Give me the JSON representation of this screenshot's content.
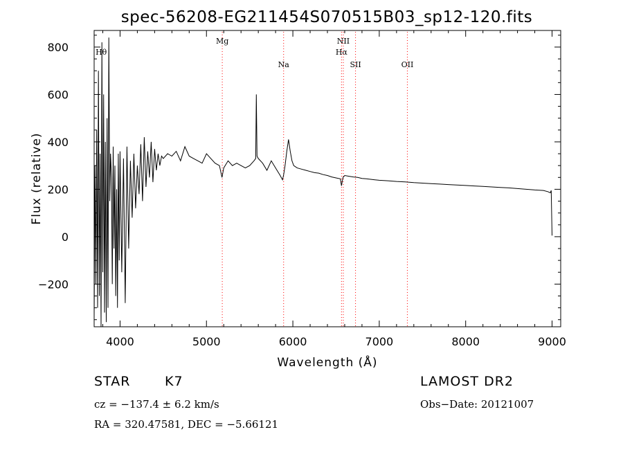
{
  "chart_data": {
    "type": "line",
    "title": "spec-56208-EG211454S070515B03_sp12-120.fits",
    "xlabel": "Wavelength (Å)",
    "ylabel": "Flux (relative)",
    "xlim": [
      3700,
      9100
    ],
    "ylim": [
      -380,
      870
    ],
    "xticks": [
      4000,
      5000,
      6000,
      7000,
      8000,
      9000
    ],
    "yticks": [
      -200,
      0,
      200,
      400,
      600,
      800
    ],
    "line_color": "#000000",
    "marker_color": "#ff0000",
    "series": [
      {
        "values_x": [
          3700,
          3710,
          3720,
          3730,
          3740,
          3750,
          3760,
          3770,
          3780,
          3790,
          3800,
          3810,
          3820,
          3830,
          3840,
          3850,
          3860,
          3870,
          3880,
          3890,
          3900,
          3910,
          3920,
          3930,
          3940,
          3950,
          3960,
          3970,
          3980,
          3990,
          4000,
          4020,
          4040,
          4060,
          4080,
          4100,
          4120,
          4140,
          4160,
          4180,
          4200,
          4220,
          4240,
          4260,
          4280,
          4300,
          4320,
          4340,
          4360,
          4380,
          4400,
          4420,
          4440,
          4460,
          4480,
          4500,
          4550,
          4600,
          4650,
          4700,
          4750,
          4800,
          4850,
          4900,
          4950,
          5000,
          5050,
          5100,
          5150,
          5180,
          5200,
          5250,
          5300,
          5350,
          5400,
          5450,
          5500,
          5550,
          5570,
          5577,
          5585,
          5600,
          5650,
          5700,
          5750,
          5800,
          5850,
          5880,
          5893,
          5910,
          5930,
          5950,
          5970,
          5990,
          6010,
          6050,
          6100,
          6150,
          6200,
          6250,
          6300,
          6350,
          6400,
          6450,
          6500,
          6550,
          6563,
          6580,
          6600,
          6650,
          6700,
          6750,
          6800,
          6850,
          6900,
          6950,
          7000,
          7100,
          7200,
          7300,
          7400,
          7500,
          7600,
          7700,
          7800,
          7900,
          8000,
          8100,
          8200,
          8300,
          8400,
          8500,
          8600,
          8700,
          8800,
          8900,
          8950,
          8980,
          8990,
          9000
        ],
        "values_y": [
          -350,
          300,
          -200,
          450,
          -300,
          700,
          -250,
          350,
          -380,
          820,
          -150,
          600,
          -320,
          400,
          -360,
          500,
          -300,
          840,
          150,
          350,
          250,
          -200,
          380,
          -50,
          300,
          -250,
          200,
          -300,
          350,
          -100,
          360,
          -150,
          330,
          -280,
          380,
          -50,
          320,
          80,
          350,
          120,
          300,
          180,
          390,
          150,
          420,
          210,
          360,
          250,
          400,
          230,
          370,
          280,
          350,
          300,
          340,
          330,
          350,
          340,
          360,
          320,
          380,
          340,
          330,
          320,
          310,
          350,
          330,
          310,
          300,
          250,
          290,
          320,
          300,
          310,
          300,
          290,
          300,
          320,
          330,
          600,
          340,
          330,
          310,
          280,
          320,
          290,
          260,
          240,
          260,
          300,
          360,
          410,
          360,
          320,
          300,
          290,
          285,
          280,
          275,
          270,
          268,
          262,
          258,
          252,
          248,
          244,
          215,
          250,
          258,
          255,
          252,
          250,
          246,
          244,
          242,
          240,
          238,
          236,
          233,
          231,
          228,
          226,
          224,
          222,
          220,
          218,
          216,
          214,
          212,
          210,
          208,
          206,
          203,
          200,
          197,
          195,
          190,
          185,
          195,
          5
        ]
      }
    ],
    "markers": [
      {
        "label": "Hθ",
        "x": 3797
      },
      {
        "label": "Mg",
        "x": 5183
      },
      {
        "label": "Na",
        "x": 5893
      },
      {
        "label": "Hα",
        "x": 6563
      },
      {
        "label": "NII",
        "x": 6584
      },
      {
        "label": "SII",
        "x": 6725
      },
      {
        "label": "OII",
        "x": 7325
      }
    ]
  },
  "info": {
    "obj_class": "STAR",
    "subclass": "K7",
    "survey": "LAMOST DR2",
    "cz": "cz = −137.4 ± 6.2 km/s",
    "obs_date": "Obs−Date: 20121007",
    "radec": "RA = 320.47581, DEC =  −5.66121"
  }
}
